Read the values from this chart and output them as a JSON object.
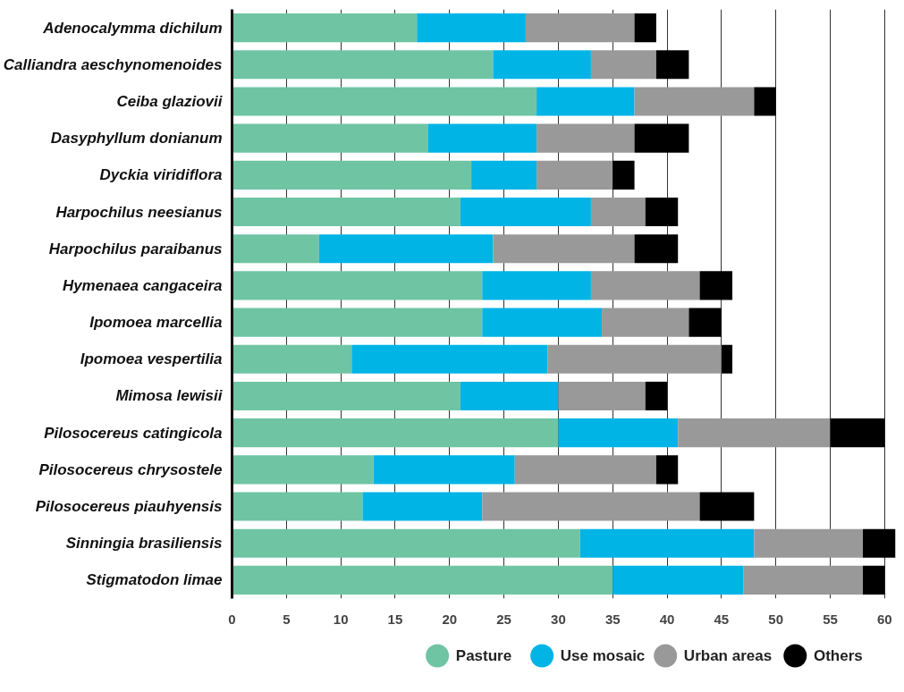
{
  "chart_data": {
    "type": "bar",
    "orientation": "horizontal",
    "stacked": true,
    "categories": [
      "Adenocalymma dichilum",
      "Calliandra aeschynomenoides",
      "Ceiba glaziovii",
      "Dasyphyllum donianum",
      "Dyckia viridiflora",
      "Harpochilus neesianus",
      "Harpochilus paraibanus",
      "Hymenaea cangaceira",
      "Ipomoea marcellia",
      "Ipomoea vespertilia",
      "Mimosa lewisii",
      "Pilosocereus catingicola",
      "Pilosocereus chrysostele",
      "Pilosocereus piauhyensis",
      "Sinningia brasiliensis",
      "Stigmatodon limae"
    ],
    "series": [
      {
        "name": "Pasture",
        "color": "#6fc4a4",
        "values": [
          17,
          24,
          28,
          18,
          22,
          21,
          8,
          23,
          23,
          11,
          21,
          30,
          13,
          12,
          32,
          35
        ]
      },
      {
        "name": "Use mosaic",
        "color": "#00b4e6",
        "values": [
          10,
          9,
          9,
          10,
          6,
          12,
          16,
          10,
          11,
          18,
          9,
          11,
          13,
          11,
          16,
          12
        ]
      },
      {
        "name": "Urban areas",
        "color": "#999999",
        "values": [
          10,
          6,
          11,
          9,
          7,
          5,
          13,
          10,
          8,
          16,
          8,
          14,
          13,
          20,
          10,
          11
        ]
      },
      {
        "name": "Others",
        "color": "#000000",
        "values": [
          2,
          3,
          2,
          5,
          2,
          3,
          4,
          3,
          3,
          1,
          2,
          5,
          2,
          5,
          3,
          2
        ]
      }
    ],
    "xlim": [
      0,
      61
    ],
    "xticks": [
      0,
      5,
      10,
      15,
      20,
      25,
      30,
      35,
      40,
      45,
      50,
      55,
      60
    ],
    "grid": "x",
    "legend": "bottom"
  }
}
